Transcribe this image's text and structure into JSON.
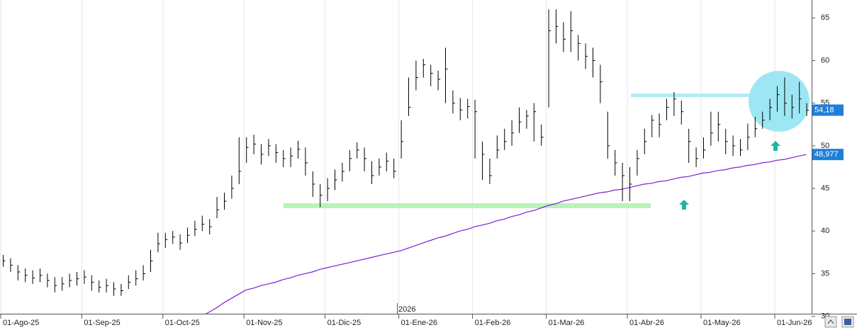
{
  "chart_data": {
    "type": "ohlc",
    "annotation": "2026",
    "categories": [
      "01-Ago-25",
      null,
      null,
      null,
      null,
      null,
      null,
      null,
      null,
      null,
      null,
      "01-Sep-25",
      null,
      null,
      null,
      null,
      null,
      null,
      null,
      null,
      null,
      null,
      "01-Oct-25",
      null,
      null,
      null,
      null,
      null,
      null,
      null,
      null,
      null,
      null,
      "01-Nov-25",
      null,
      null,
      null,
      null,
      null,
      null,
      null,
      null,
      null,
      null,
      "01-Dic-25",
      null,
      null,
      null,
      null,
      null,
      null,
      null,
      null,
      null,
      "01-Ene-26",
      null,
      null,
      null,
      null,
      null,
      null,
      null,
      null,
      null,
      "01-Feb-26",
      null,
      null,
      null,
      null,
      null,
      null,
      null,
      null,
      null,
      "01-Mar-26",
      null,
      null,
      null,
      null,
      null,
      null,
      null,
      null,
      null,
      null,
      "01-Abr-26",
      null,
      null,
      null,
      null,
      null,
      null,
      null,
      null,
      null,
      "01-May-26",
      null,
      null,
      null,
      null,
      null,
      null,
      null,
      null,
      null,
      "01-Jun-26",
      null,
      null,
      null,
      null
    ],
    "high": [
      37.2,
      36.8,
      36.0,
      35.6,
      35.4,
      35.6,
      35.0,
      34.6,
      34.6,
      35.0,
      35.2,
      35.4,
      34.8,
      34.2,
      34.4,
      34.0,
      33.8,
      34.8,
      35.4,
      36.0,
      37.8,
      39.8,
      39.8,
      40.0,
      39.6,
      40.4,
      41.2,
      41.8,
      41.4,
      44.0,
      44.5,
      46.5,
      51.0,
      51.0,
      51.3,
      50.2,
      50.8,
      50.2,
      49.5,
      49.8,
      50.6,
      49.8,
      47.0,
      45.5,
      46.2,
      47.2,
      48.0,
      49.5,
      50.4,
      49.8,
      48.2,
      48.5,
      49.2,
      48.5,
      53.0,
      58.0,
      60.0,
      60.2,
      59.5,
      58.8,
      61.5,
      56.5,
      55.6,
      55.5,
      55.4,
      50.5,
      48.5,
      51.2,
      52.0,
      53.0,
      54.5,
      54.2,
      55.0,
      52.5,
      66.0,
      66.0,
      64.5,
      65.8,
      63.0,
      62.0,
      61.5,
      59.5,
      54.0,
      49.5,
      48.0,
      47.5,
      49.5,
      52.0,
      53.6,
      53.8,
      55.5,
      56.3,
      55.3,
      52.0,
      49.8,
      51.0,
      54.0,
      54.0,
      52.0,
      51.2,
      50.8,
      52.6,
      53.4,
      54.0,
      55.5,
      57.0,
      58.0,
      56.0,
      57.5,
      55.0
    ],
    "low": [
      35.8,
      35.2,
      34.2,
      34.0,
      33.8,
      34.0,
      33.4,
      32.8,
      33.0,
      33.4,
      33.6,
      33.8,
      33.0,
      32.8,
      32.8,
      32.4,
      32.4,
      33.2,
      33.6,
      34.2,
      35.2,
      37.5,
      38.0,
      38.5,
      37.8,
      38.6,
      39.4,
      40.0,
      39.6,
      41.5,
      42.5,
      43.8,
      45.5,
      48.0,
      49.0,
      47.8,
      48.8,
      48.0,
      47.5,
      47.5,
      48.5,
      46.5,
      44.0,
      42.8,
      43.5,
      44.8,
      45.8,
      47.0,
      48.5,
      47.0,
      45.5,
      46.5,
      47.0,
      46.2,
      48.5,
      53.5,
      56.5,
      58.0,
      57.0,
      56.5,
      55.0,
      53.8,
      53.0,
      53.2,
      48.5,
      46.0,
      45.5,
      48.5,
      49.5,
      50.0,
      51.5,
      52.0,
      50.5,
      50.0,
      54.5,
      62.0,
      61.0,
      61.0,
      60.0,
      59.0,
      58.0,
      55.0,
      48.5,
      46.5,
      43.5,
      43.5,
      46.5,
      49.0,
      51.0,
      51.0,
      53.0,
      53.5,
      52.5,
      48.0,
      47.5,
      48.5,
      50.0,
      50.5,
      49.0,
      48.8,
      48.8,
      49.5,
      51.0,
      52.0,
      53.0,
      54.0,
      53.5,
      53.2,
      53.8,
      53.5
    ],
    "close": [
      36.5,
      36.0,
      35.2,
      34.8,
      34.5,
      34.8,
      34.2,
      33.6,
      33.8,
      34.2,
      34.4,
      34.6,
      34.0,
      33.4,
      33.6,
      33.2,
      33.0,
      34.0,
      34.4,
      35.0,
      36.5,
      38.5,
      39.0,
      39.3,
      38.6,
      39.5,
      40.2,
      40.8,
      40.5,
      42.5,
      43.5,
      45.0,
      47.0,
      49.8,
      50.2,
      49.0,
      50.0,
      49.2,
      48.5,
      48.8,
      49.6,
      48.0,
      45.5,
      44.2,
      45.0,
      46.0,
      47.0,
      48.5,
      49.5,
      48.5,
      46.5,
      47.5,
      48.2,
      47.0,
      50.5,
      54.5,
      58.0,
      59.5,
      58.5,
      57.8,
      59.0,
      55.0,
      54.2,
      54.6,
      54.0,
      49.0,
      46.5,
      49.5,
      50.5,
      51.5,
      52.8,
      53.5,
      54.0,
      51.0,
      63.5,
      64.0,
      62.5,
      63.5,
      62.0,
      60.5,
      60.0,
      57.5,
      50.0,
      48.0,
      46.5,
      45.5,
      48.5,
      50.5,
      53.0,
      52.5,
      54.5,
      55.5,
      54.0,
      50.5,
      48.5,
      49.5,
      51.5,
      52.5,
      50.5,
      50.0,
      49.5,
      51.0,
      52.0,
      53.0,
      54.5,
      56.0,
      55.0,
      54.5,
      55.5,
      54.18
    ],
    "color": "#000000",
    "ma": {
      "color": "#7a1fd2",
      "values": [
        null,
        null,
        null,
        null,
        null,
        null,
        null,
        null,
        null,
        null,
        null,
        null,
        null,
        null,
        null,
        null,
        null,
        null,
        null,
        null,
        null,
        null,
        null,
        null,
        null,
        null,
        null,
        30.0,
        30.5,
        31.0,
        31.6,
        32.1,
        32.6,
        33.1,
        33.3,
        33.6,
        33.8,
        34.0,
        34.3,
        34.5,
        34.8,
        35.0,
        35.2,
        35.5,
        35.7,
        35.9,
        36.1,
        36.3,
        36.5,
        36.7,
        36.9,
        37.1,
        37.3,
        37.5,
        37.7,
        38.0,
        38.3,
        38.6,
        38.9,
        39.2,
        39.4,
        39.7,
        40.0,
        40.2,
        40.5,
        40.7,
        40.9,
        41.2,
        41.4,
        41.7,
        41.9,
        42.2,
        42.4,
        42.7,
        43.0,
        43.2,
        43.5,
        43.7,
        43.9,
        44.1,
        44.3,
        44.5,
        44.6,
        44.8,
        44.9,
        45.1,
        45.3,
        45.5,
        45.6,
        45.8,
        45.9,
        46.1,
        46.3,
        46.4,
        46.6,
        46.8,
        46.9,
        47.1,
        47.2,
        47.4,
        47.5,
        47.7,
        47.8,
        48.0,
        48.1,
        48.3,
        48.4,
        48.6,
        48.8,
        48.977
      ]
    },
    "y_markers": [
      {
        "value": 54.18,
        "label": "54,18",
        "color": "#1e7fd8"
      },
      {
        "value": 48.977,
        "label": "48,977",
        "color": "#1e7fd8"
      }
    ],
    "ylim": [
      30.3,
      67.1
    ],
    "yticks": [
      30,
      35,
      40,
      45,
      50,
      55,
      60,
      65
    ],
    "grid": true
  }
}
